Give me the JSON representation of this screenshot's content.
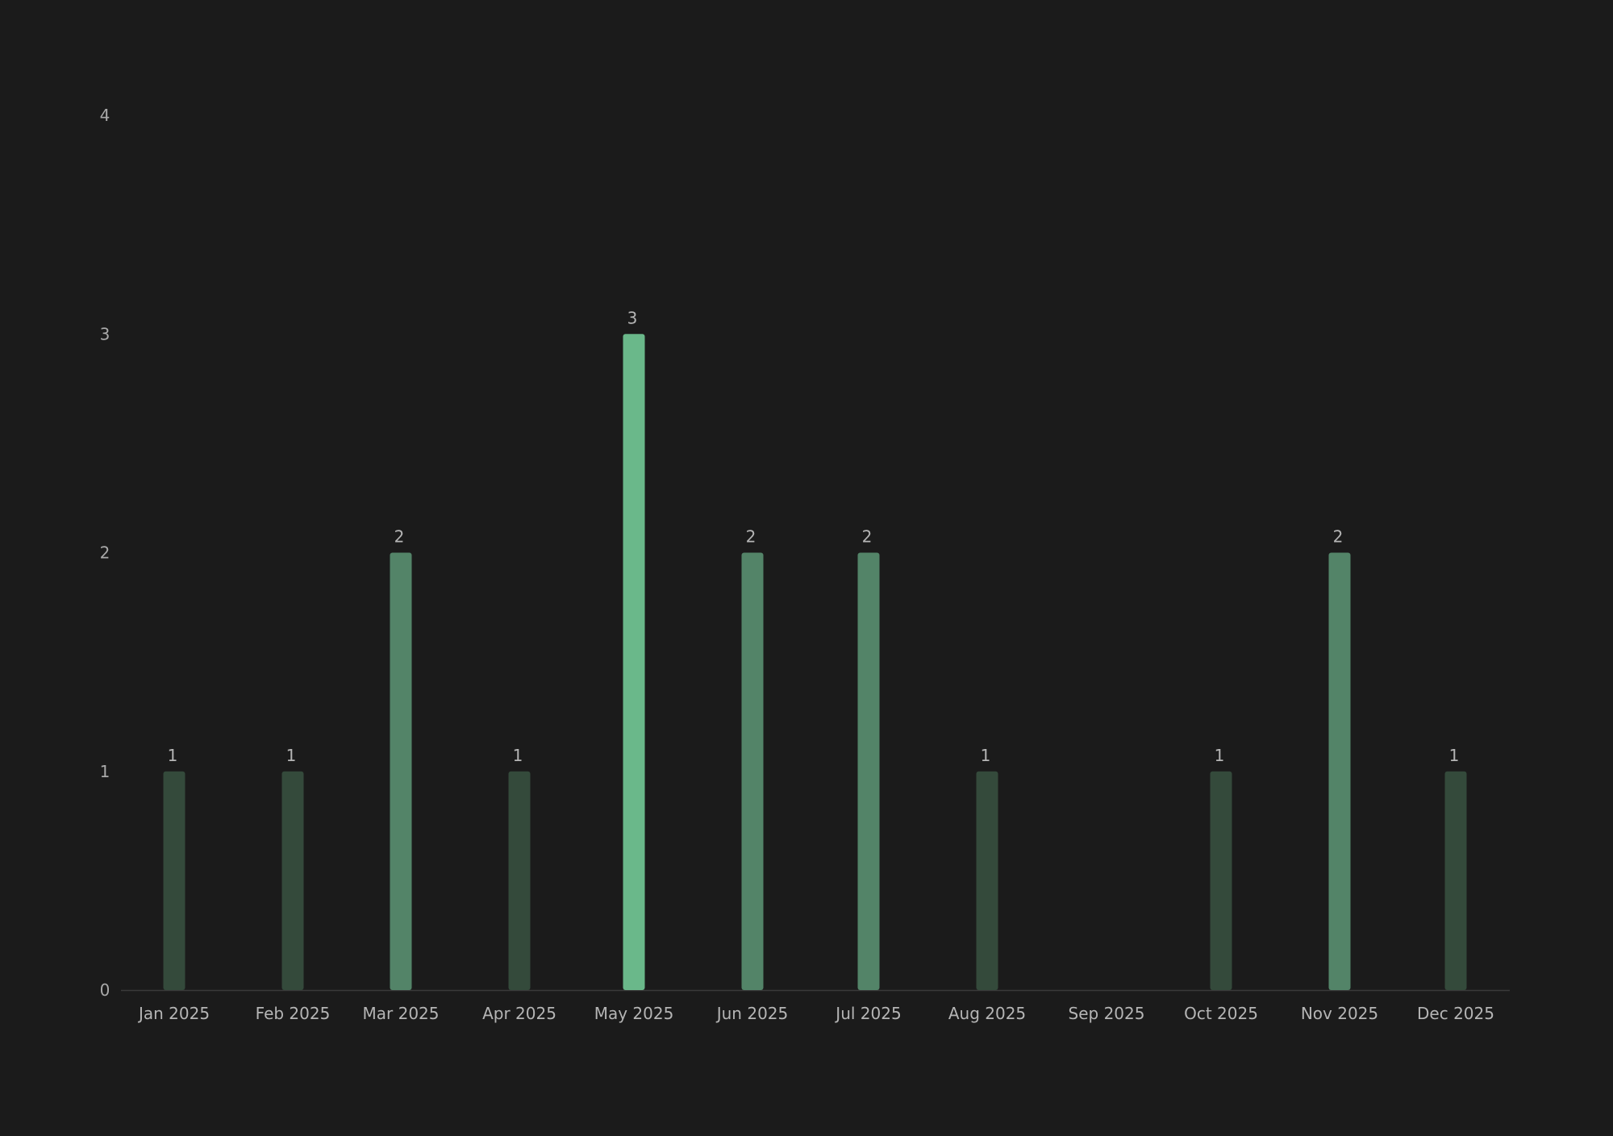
{
  "chart_data": {
    "type": "bar",
    "categories": [
      "Jan 2025",
      "Feb 2025",
      "Mar 2025",
      "Apr 2025",
      "May 2025",
      "Jun 2025",
      "Jul 2025",
      "Aug 2025",
      "Sep 2025",
      "Oct 2025",
      "Nov 2025",
      "Dec 2025"
    ],
    "values": [
      1,
      1,
      2,
      1,
      3,
      2,
      2,
      1,
      0,
      1,
      2,
      1
    ],
    "ylim": [
      0,
      4
    ],
    "yticks": [
      0,
      1,
      2,
      3,
      4
    ],
    "grid": false,
    "show_value_labels": true,
    "colors": {
      "level1": "#344a3b",
      "level2": "#538468",
      "level3": "#6ab88a",
      "axis": "#3a3a3a",
      "background": "#1b1b1b"
    }
  }
}
